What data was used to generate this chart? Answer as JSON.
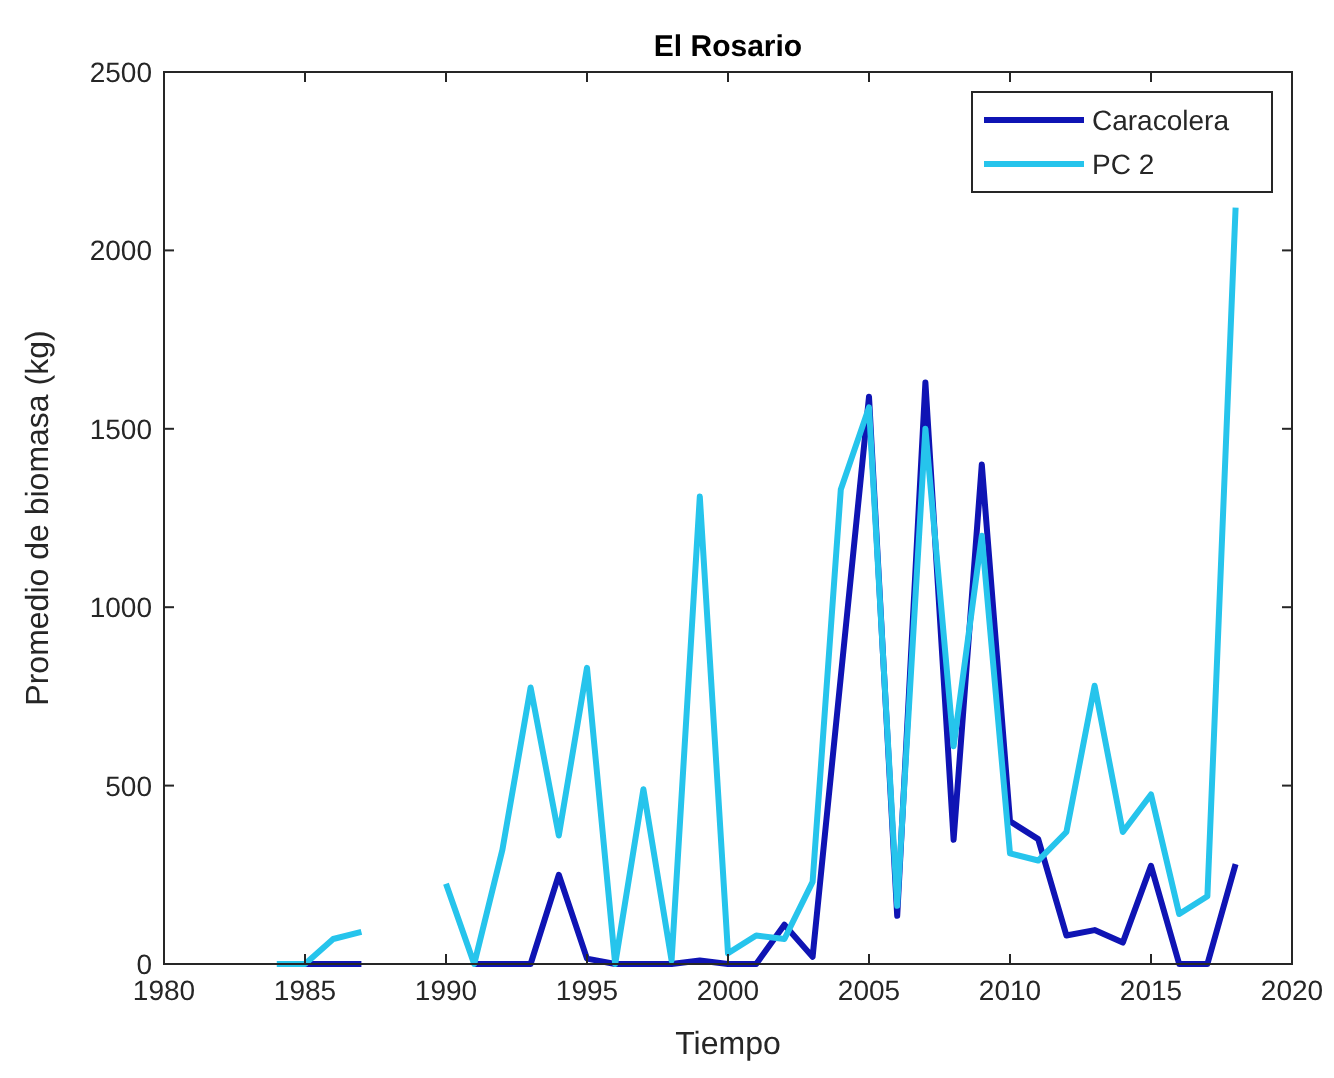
{
  "chart_data": {
    "type": "line",
    "title": "El Rosario",
    "xlabel": "Tiempo",
    "ylabel": "Promedio de biomasa (kg)",
    "series": [
      {
        "name": "Caracolera",
        "color": "#0f14b4",
        "x": [
          1985,
          1986,
          1987,
          1991,
          1992,
          1993,
          1994,
          1995,
          1996,
          1997,
          1998,
          1999,
          2000,
          2001,
          2002,
          2003,
          2004,
          2005,
          2006,
          2007,
          2008,
          2009,
          2010,
          2011,
          2012,
          2013,
          2014,
          2015,
          2016,
          2017,
          2018
        ],
        "values": [
          0,
          0,
          0,
          0,
          0,
          0,
          250,
          15,
          0,
          0,
          0,
          10,
          0,
          0,
          110,
          20,
          805,
          1590,
          135,
          1630,
          348,
          1400,
          400,
          350,
          80,
          95,
          60,
          275,
          0,
          0,
          280
        ]
      },
      {
        "name": "PC 2",
        "color": "#26c4ec",
        "x": [
          1984,
          1985,
          1986,
          1987,
          1990,
          1991,
          1992,
          1993,
          1994,
          1995,
          1996,
          1997,
          1998,
          1999,
          2000,
          2001,
          2002,
          2003,
          2004,
          2005,
          2006,
          2007,
          2008,
          2009,
          2010,
          2011,
          2012,
          2013,
          2014,
          2015,
          2016,
          2017,
          2018
        ],
        "values": [
          0,
          0,
          70,
          90,
          225,
          0,
          320,
          775,
          360,
          830,
          0,
          490,
          10,
          1310,
          30,
          80,
          70,
          230,
          1330,
          1560,
          163,
          1500,
          610,
          1200,
          310,
          290,
          370,
          780,
          370,
          475,
          140,
          190,
          2120
        ]
      }
    ],
    "xlim": [
      1980,
      2020
    ],
    "xticks": [
      1980,
      1985,
      1990,
      1995,
      2000,
      2005,
      2010,
      2015,
      2020
    ],
    "ylim": [
      0,
      2500
    ],
    "yticks": [
      0,
      500,
      1000,
      1500,
      2000,
      2500
    ],
    "legend": "top right",
    "line_style": "solid",
    "grid": false
  }
}
